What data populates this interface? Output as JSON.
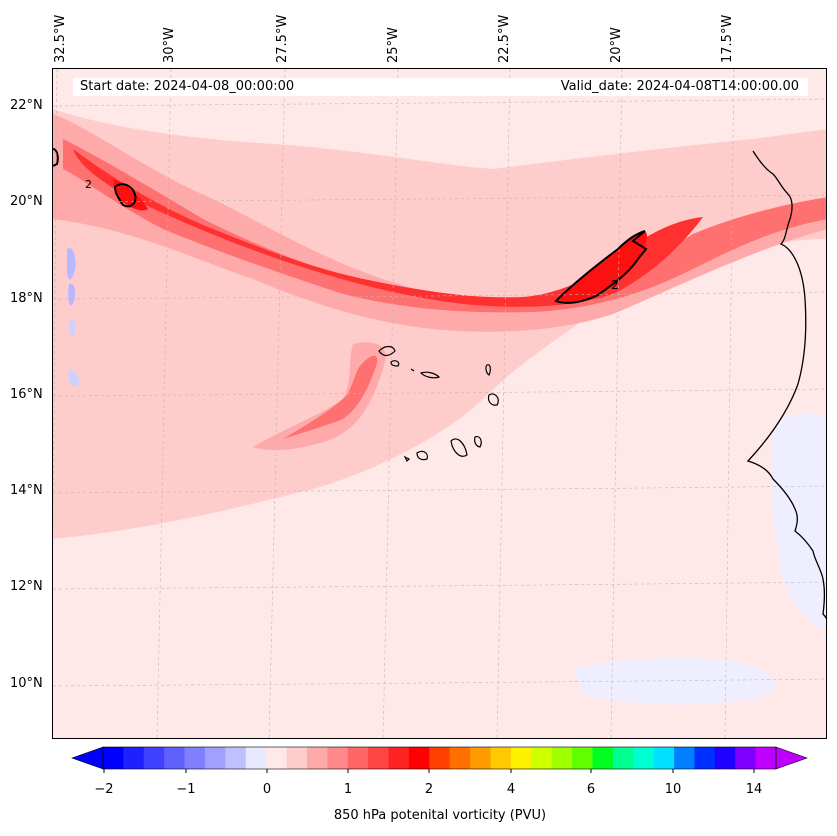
{
  "header": {
    "start_date": "Start date: 2024-04-08_00:00:00",
    "valid_date": "Valid_date: 2024-04-08T14:00:00.00"
  },
  "axes": {
    "longitude_labels": [
      "32.5°W",
      "30°W",
      "27.5°W",
      "25°W",
      "22.5°W",
      "20°W",
      "17.5°W"
    ],
    "latitude_labels": [
      "22°N",
      "20°N",
      "18°N",
      "16°N",
      "14°N",
      "12°N",
      "10°N"
    ]
  },
  "map": {
    "contour_label": "2",
    "colors": {
      "background": "#ffe8e8",
      "light": "#ffcccc",
      "medium": "#ffaaaa",
      "strong": "#ff7070",
      "intense": "#ff3030",
      "max": "#ff1010",
      "negative": "#e8e8ff",
      "coast": "#000000"
    }
  },
  "colorbar": {
    "tick_labels": [
      "−2",
      "−1",
      "0",
      "1",
      "2",
      "4",
      "6",
      "10",
      "14"
    ],
    "label": "850 hPa potenital vorticity (PVU)",
    "colors": [
      "#0000ff",
      "#2020ff",
      "#4040ff",
      "#6060ff",
      "#8080ff",
      "#a0a0ff",
      "#c0c0ff",
      "#e8e8ff",
      "#ffe8e8",
      "#ffcccc",
      "#ffaaaa",
      "#ff8888",
      "#ff6666",
      "#ff4444",
      "#ff2222",
      "#ff0000",
      "#ff4000",
      "#ff7000",
      "#ff9a00",
      "#ffc800",
      "#fff000",
      "#d0ff00",
      "#a0ff00",
      "#60ff00",
      "#00ff20",
      "#00ff90",
      "#00ffd0",
      "#00e0ff",
      "#0080ff",
      "#0030ff",
      "#2000ff",
      "#8000ff",
      "#c000ff"
    ]
  }
}
